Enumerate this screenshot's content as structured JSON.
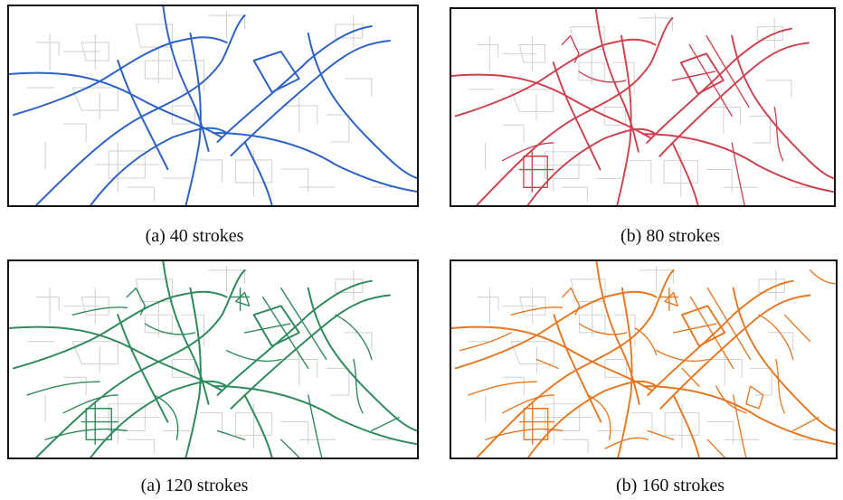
{
  "panels": [
    {
      "caption": "(a) 40 strokes"
    },
    {
      "caption": "(b) 80 strokes"
    },
    {
      "caption": "(a) 120 strokes"
    },
    {
      "caption": "(b) 160 strokes"
    }
  ]
}
